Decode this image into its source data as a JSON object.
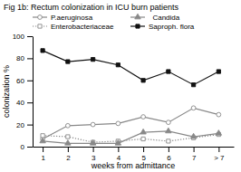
{
  "chart_data": {
    "type": "line",
    "title": "Fig 1b: Rectum colonization in ICU burn patients",
    "x_label": "weeks from admittance",
    "y_label": "colonization %",
    "x": [
      1,
      2,
      3,
      4,
      5,
      6,
      7,
      8
    ],
    "xlim": [
      0.6,
      8.6
    ],
    "xticks": [
      1,
      2,
      3,
      4,
      5,
      6,
      7,
      {
        "value": 8,
        "label": "> 7"
      }
    ],
    "ylim": [
      0,
      100
    ],
    "yticks": [
      0,
      20,
      40,
      60,
      80,
      100
    ],
    "legend": "top",
    "series": [
      {
        "name": "P.aeruginosa",
        "color": "#888888",
        "marker": "circle-open",
        "line_style": "solid",
        "values": [
          7,
          19,
          20,
          21,
          27,
          22,
          35,
          29
        ]
      },
      {
        "name": "Enterobacteriaceae",
        "color": "#888888",
        "marker": "square-open",
        "line_style": "dotted",
        "values": [
          10,
          9,
          4,
          5,
          7,
          5,
          8,
          11
        ]
      },
      {
        "name": "  Candida",
        "color": "#888888",
        "marker": "triangle",
        "line_style": "solid",
        "values": [
          5,
          3,
          3,
          3,
          13,
          14,
          9,
          12
        ]
      },
      {
        "name": "Saproph. flora",
        "color": "#111111",
        "marker": "square",
        "line_style": "solid",
        "values": [
          87,
          77,
          79,
          74,
          60,
          68,
          56,
          68
        ]
      }
    ]
  }
}
